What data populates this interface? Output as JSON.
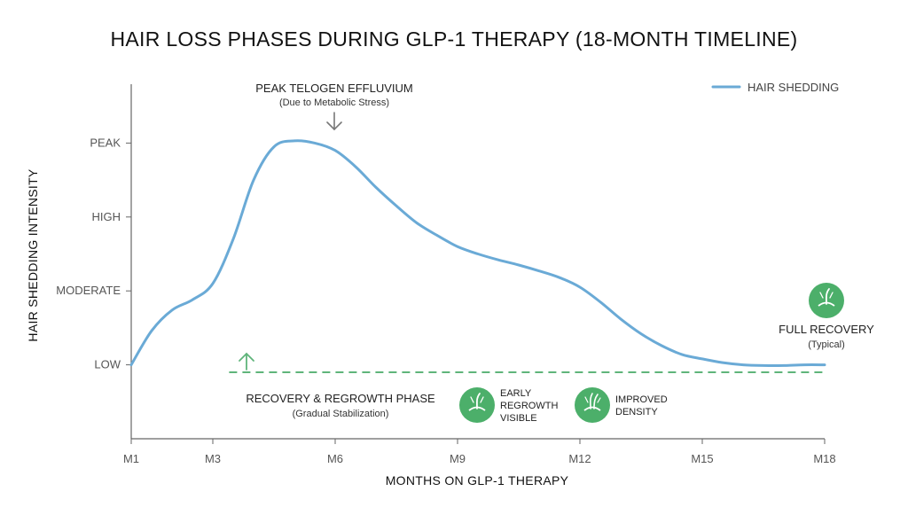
{
  "chart_data": {
    "type": "line",
    "title": "HAIR LOSS PHASES DURING GLP-1 THERAPY (18-MONTH TIMELINE)",
    "xlabel": "MONTHS ON GLP-1 THERAPY",
    "ylabel": "HAIR SHEDDING INTENSITY",
    "x_ticks": [
      {
        "value": 1,
        "label": "M1"
      },
      {
        "value": 3,
        "label": "M3"
      },
      {
        "value": 6,
        "label": "M6"
      },
      {
        "value": 9,
        "label": "M9"
      },
      {
        "value": 12,
        "label": "M12"
      },
      {
        "value": 15,
        "label": "M15"
      },
      {
        "value": 18,
        "label": "M18"
      }
    ],
    "y_ticks": [
      {
        "value": 1,
        "label": "LOW"
      },
      {
        "value": 2,
        "label": "MODERATE"
      },
      {
        "value": 3,
        "label": "HIGH"
      },
      {
        "value": 4,
        "label": "PEAK"
      }
    ],
    "xlim": [
      1,
      18
    ],
    "ylim": [
      0,
      5
    ],
    "grid": false,
    "legend_position": "top-right",
    "series": [
      {
        "name": "HAIR SHEDDING",
        "color": "#6aaad6",
        "x": [
          1,
          1.5,
          2,
          2.5,
          3,
          3.5,
          4,
          4.5,
          5,
          5.5,
          6,
          6.5,
          7,
          7.5,
          8,
          8.5,
          9,
          9.5,
          10,
          10.5,
          11,
          11.5,
          12,
          12.5,
          13,
          13.5,
          14,
          14.5,
          15,
          15.5,
          16,
          16.5,
          17,
          17.5,
          18
        ],
        "values": [
          1.0,
          1.46,
          1.74,
          1.88,
          2.1,
          2.7,
          3.5,
          3.95,
          4.03,
          4.0,
          3.9,
          3.68,
          3.4,
          3.15,
          2.92,
          2.75,
          2.6,
          2.5,
          2.42,
          2.35,
          2.27,
          2.18,
          2.05,
          1.85,
          1.62,
          1.42,
          1.26,
          1.14,
          1.08,
          1.03,
          1.0,
          0.99,
          0.99,
          1.0,
          1.0
        ]
      }
    ],
    "baseline": {
      "value": 0.9,
      "color": "#5fb47a",
      "style": "dashed",
      "x_start": 3.4,
      "x_end": 18
    },
    "annotations": {
      "peak": {
        "title": "PEAK TELOGEN EFFLUVIUM",
        "subtitle": "(Due to Metabolic Stress)",
        "x": 6.0
      },
      "recovery_phase": {
        "title": "RECOVERY & REGROWTH PHASE",
        "subtitle": "(Gradual Stabilization)"
      },
      "early_regrowth": {
        "lines": [
          "EARLY",
          "REGROWTH",
          "VISIBLE"
        ],
        "icon": "hair-follicle-icon"
      },
      "improved_density": {
        "lines": [
          "IMPROVED",
          "DENSITY"
        ],
        "icon": "hair-follicle-icon"
      },
      "full_recovery": {
        "title": "FULL RECOVERY",
        "subtitle": "(Typical)",
        "icon": "hair-follicle-icon"
      }
    },
    "colors": {
      "line": "#6aaad6",
      "recovery": "#5fb47a",
      "badge": "#4caf6a",
      "axis": "#666666",
      "arrow": "#777777"
    }
  }
}
